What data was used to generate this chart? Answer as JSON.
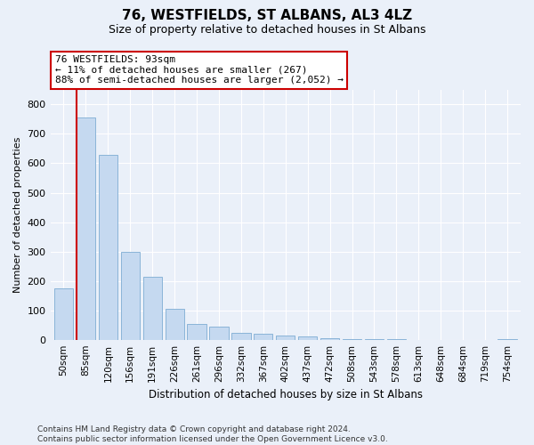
{
  "title": "76, WESTFIELDS, ST ALBANS, AL3 4LZ",
  "subtitle": "Size of property relative to detached houses in St Albans",
  "xlabel": "Distribution of detached houses by size in St Albans",
  "ylabel": "Number of detached properties",
  "bar_color": "#c5d9f0",
  "bar_edge_color": "#8ab4d8",
  "annotation_line_color": "#cc0000",
  "annotation_box_color": "#cc0000",
  "categories": [
    "50sqm",
    "85sqm",
    "120sqm",
    "156sqm",
    "191sqm",
    "226sqm",
    "261sqm",
    "296sqm",
    "332sqm",
    "367sqm",
    "402sqm",
    "437sqm",
    "472sqm",
    "508sqm",
    "543sqm",
    "578sqm",
    "613sqm",
    "648sqm",
    "684sqm",
    "719sqm",
    "754sqm"
  ],
  "values": [
    175,
    755,
    630,
    300,
    215,
    105,
    55,
    45,
    22,
    20,
    14,
    12,
    5,
    2,
    2,
    1,
    0,
    0,
    0,
    0,
    3
  ],
  "property_bin_index": 1,
  "annotation_text_line1": "76 WESTFIELDS: 93sqm",
  "annotation_text_line2": "← 11% of detached houses are smaller (267)",
  "annotation_text_line3": "88% of semi-detached houses are larger (2,052) →",
  "ylim": [
    0,
    850
  ],
  "yticks": [
    0,
    100,
    200,
    300,
    400,
    500,
    600,
    700,
    800
  ],
  "footnote_line1": "Contains HM Land Registry data © Crown copyright and database right 2024.",
  "footnote_line2": "Contains public sector information licensed under the Open Government Licence v3.0.",
  "background_color": "#eaf0f9",
  "plot_bg_color": "#eaf0f9",
  "grid_color": "#ffffff",
  "title_fontsize": 11,
  "subtitle_fontsize": 9,
  "ylabel_fontsize": 8,
  "xlabel_fontsize": 8.5,
  "tick_fontsize": 8,
  "xtick_fontsize": 7.5,
  "footnote_fontsize": 6.5,
  "annotation_fontsize": 8
}
